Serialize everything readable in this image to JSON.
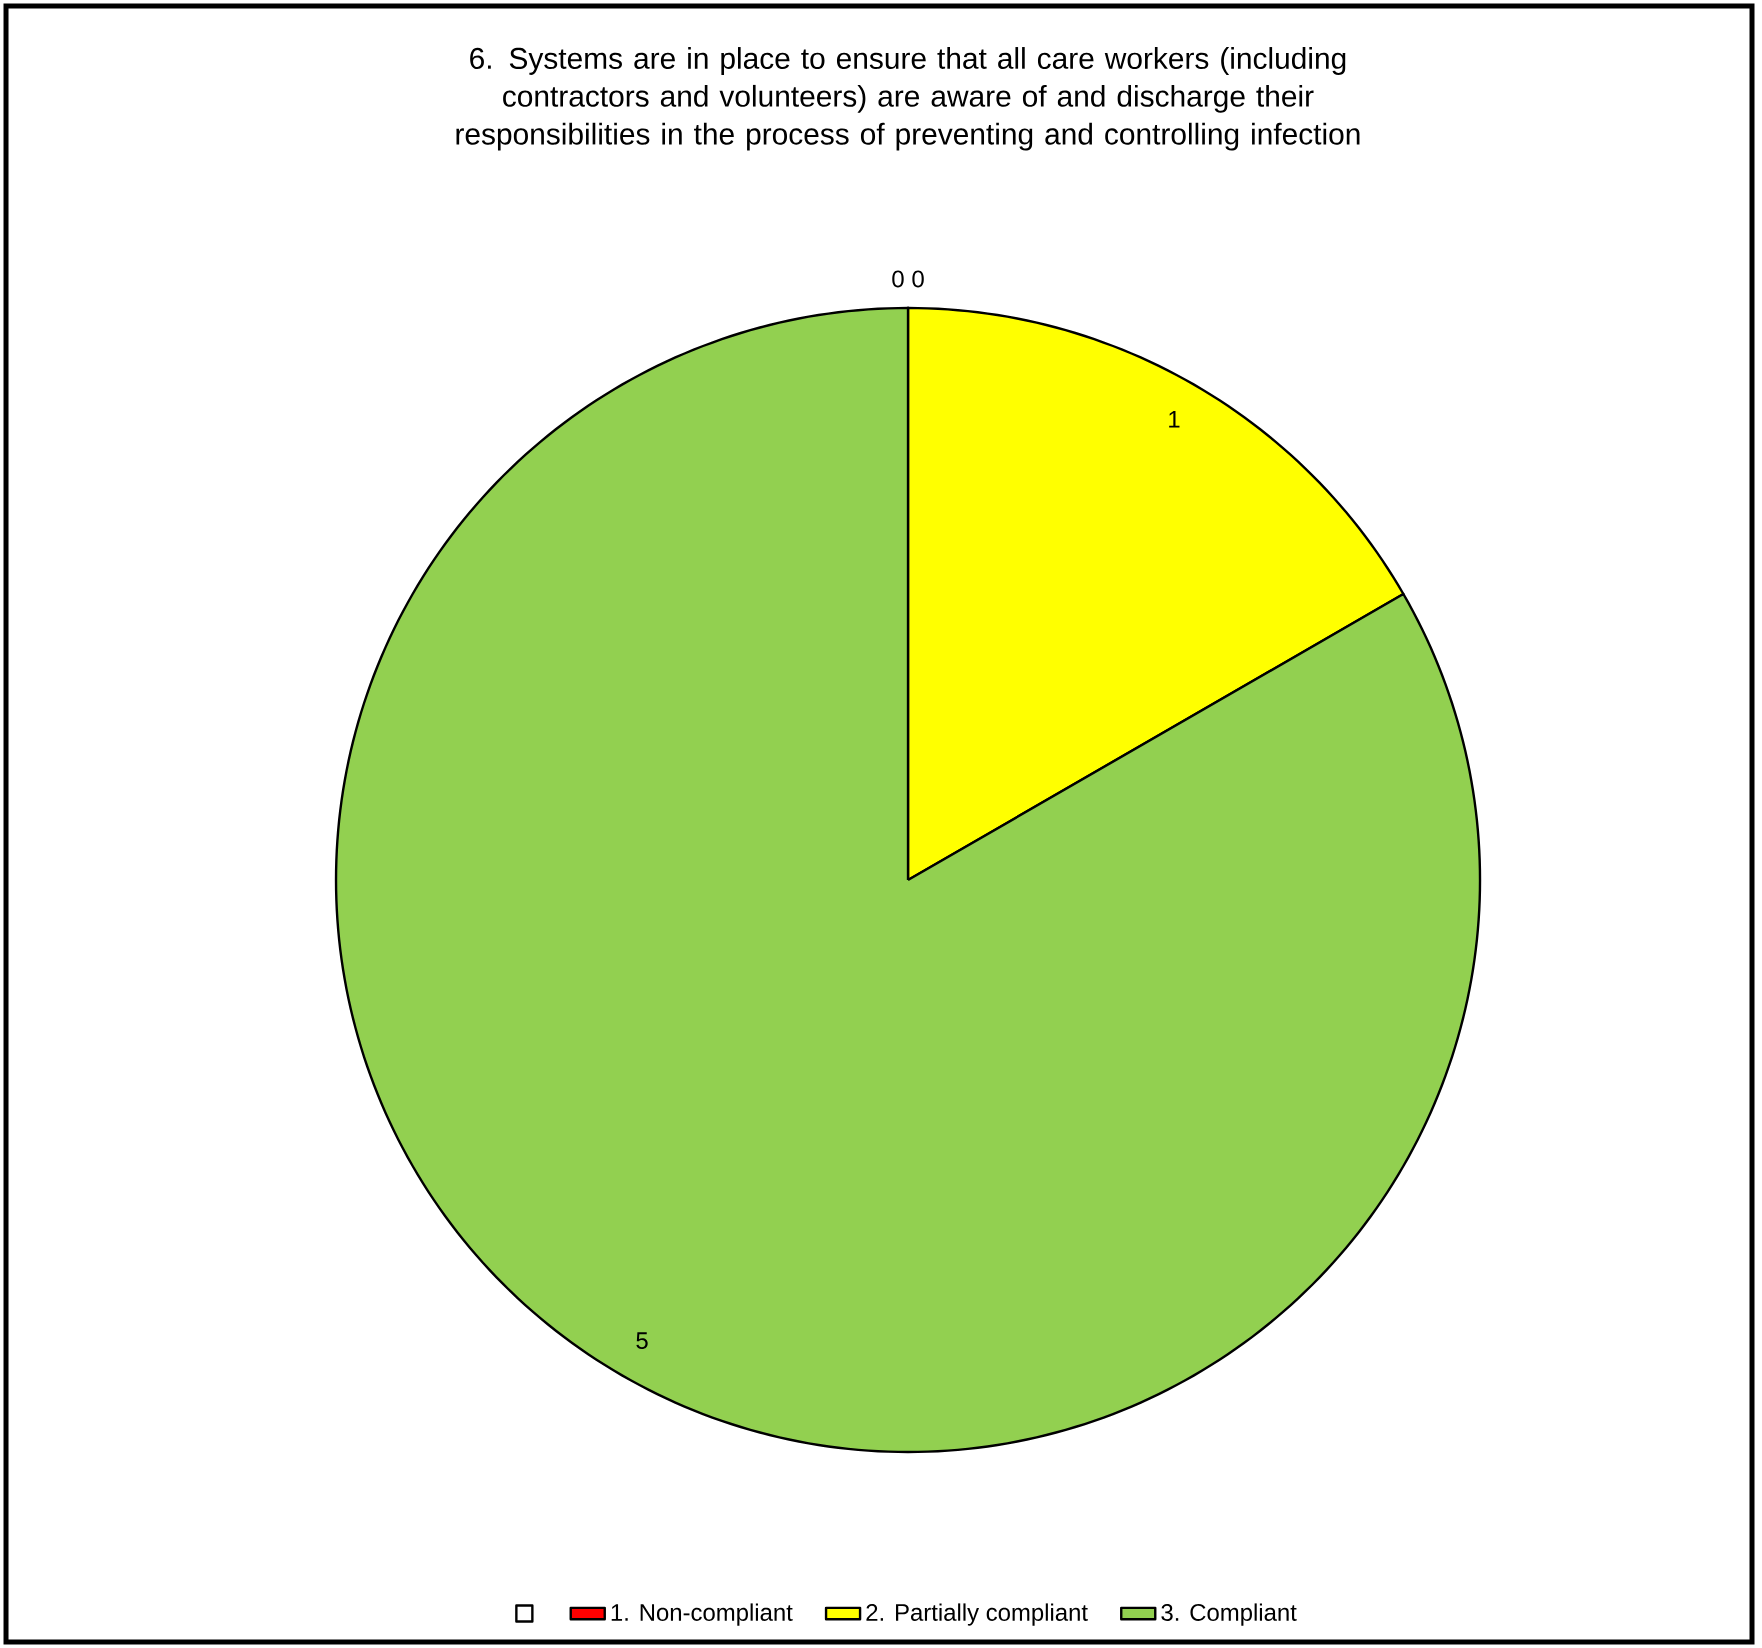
{
  "chart_data": {
    "type": "pie",
    "title": "6. Systems are in place to ensure that all care workers (including contractors and volunteers) are aware of and discharge their responsibilities in the process of preventing and controlling infection",
    "categories": [
      null,
      "1. Non-compliant",
      "2. Partially compliant",
      "3. Compliant"
    ],
    "values": [
      0,
      0,
      1,
      5
    ],
    "colors": [
      "#ffffff",
      "#ff0000",
      "#ffff00",
      "#92d050"
    ],
    "value_labels": [
      "0",
      "0",
      "1",
      "5"
    ],
    "legend": "bottom"
  }
}
